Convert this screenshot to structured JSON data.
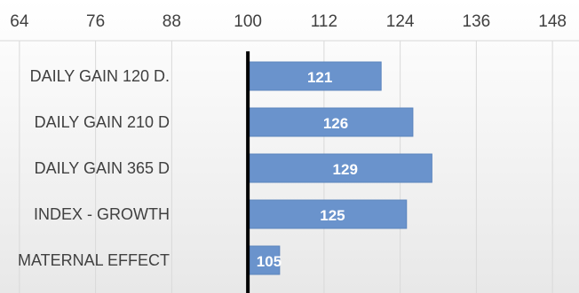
{
  "chart_data": {
    "type": "bar",
    "orientation": "horizontal",
    "categories": [
      "DAILY GAIN 120 D.",
      "DAILY GAIN 210 D",
      "DAILY GAIN 365 D",
      "INDEX - GROWTH",
      "MATERNAL EFFECT"
    ],
    "values": [
      121,
      126,
      129,
      125,
      105
    ],
    "data_labels": [
      "121",
      "126",
      "129",
      "125",
      "105"
    ],
    "base": 100,
    "xlim": [
      58,
      154
    ],
    "x_ticks": [
      "64",
      "76",
      "88",
      "100",
      "112",
      "124",
      "136",
      "148"
    ],
    "x_tick_values": [
      64,
      76,
      88,
      100,
      112,
      124,
      136,
      148
    ],
    "tick_position": "top",
    "grid": true,
    "legend": "none",
    "title": "",
    "xlabel": "",
    "ylabel": "",
    "colors": {
      "bar": "#6a93cc",
      "bar_border": "#5b84bd",
      "label": "#ffffff",
      "grid": "#d9d9d9",
      "baseline": "#000000",
      "text": "#404040",
      "background_top": "#ffffff",
      "background_bottom": "#e8e8e8"
    }
  }
}
